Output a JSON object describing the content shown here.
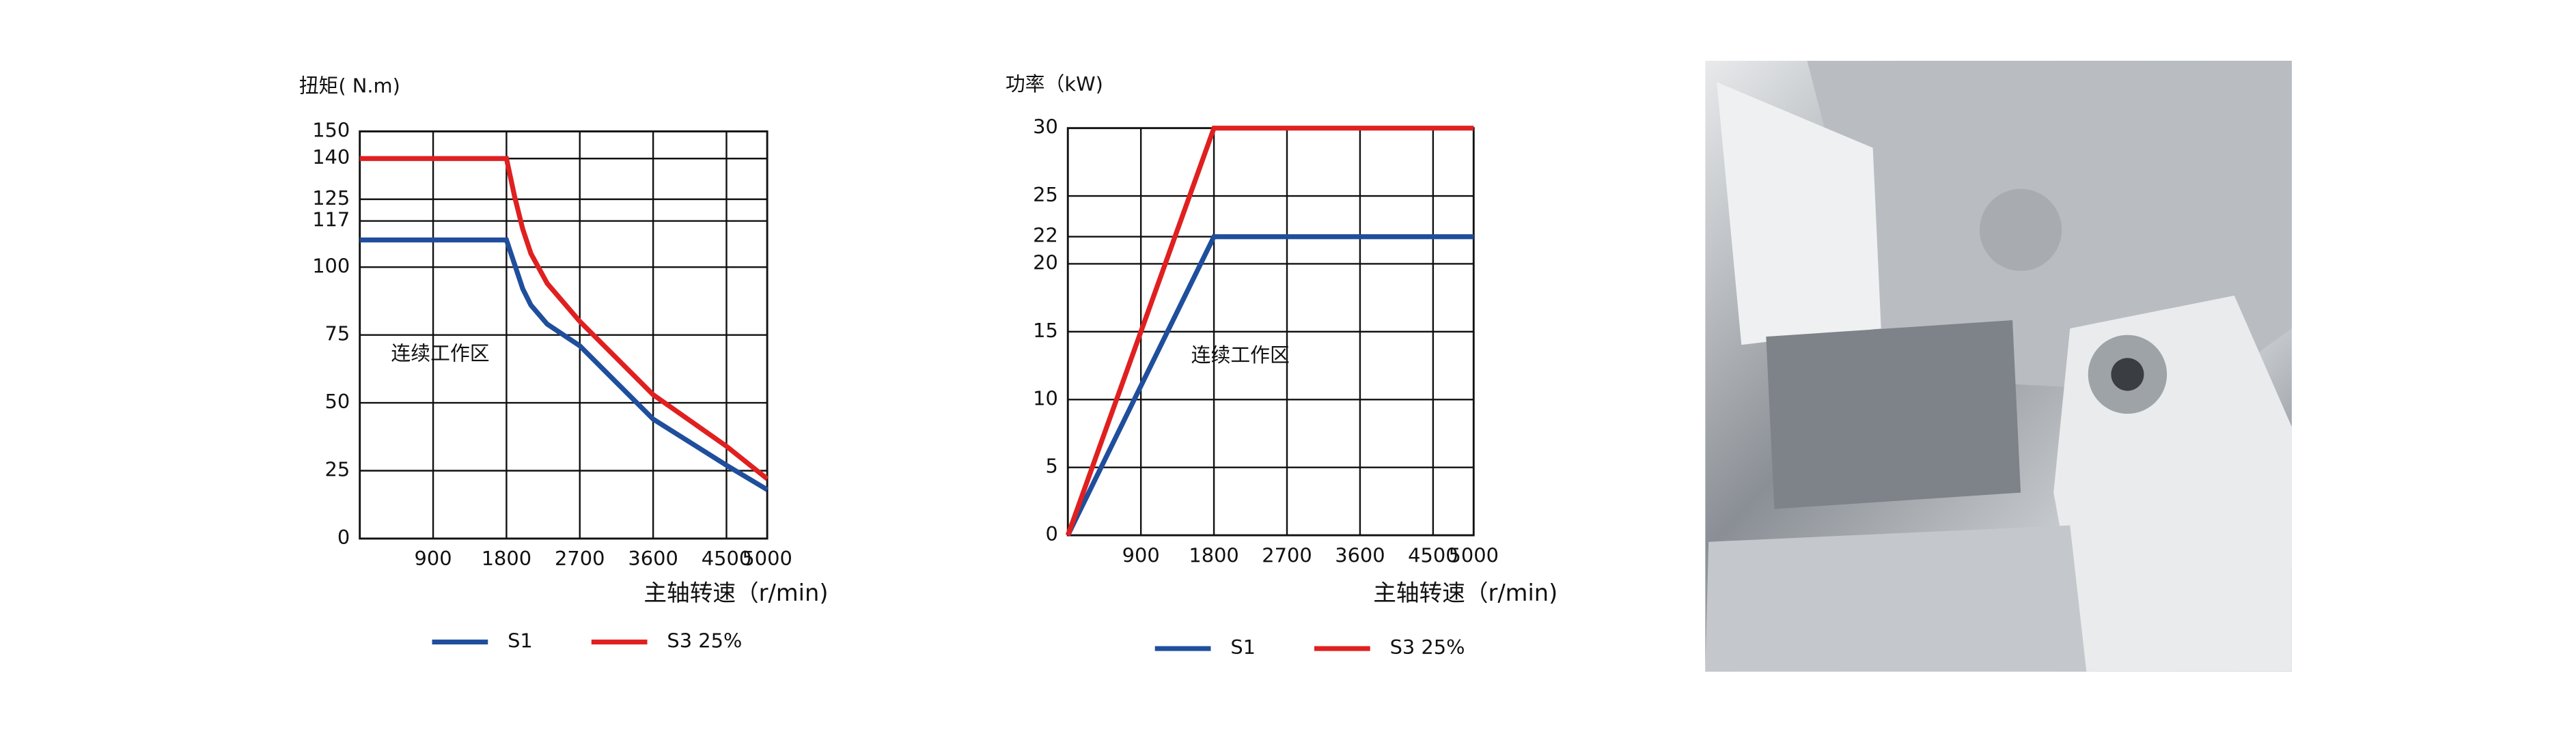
{
  "chart_data": [
    {
      "type": "line",
      "ylabel": "扭矩( N.m)",
      "xlabel": "主轴转速（r/min)",
      "annotation": "连续工作区",
      "x": [
        0,
        1800,
        1900,
        2000,
        2100,
        2300,
        2700,
        3600,
        4500,
        5000
      ],
      "series": [
        {
          "name": "S1",
          "color": "#1f4e9c",
          "values": [
            110,
            110,
            101,
            92,
            86,
            79,
            71,
            44,
            27,
            18
          ]
        },
        {
          "name": "S3 25%",
          "color": "#e02020",
          "values": [
            140,
            140,
            126,
            114,
            105,
            94,
            80,
            53,
            34,
            22
          ]
        }
      ],
      "xlim": [
        0,
        5000
      ],
      "ylim": [
        0,
        150
      ],
      "xticks": [
        900,
        1800,
        2700,
        3600,
        4500,
        5000
      ],
      "yticks": [
        0,
        25,
        50,
        75,
        100,
        117,
        125,
        140,
        150
      ],
      "grid": true
    },
    {
      "type": "line",
      "ylabel": "功率（kW)",
      "xlabel": "主轴转速（r/min)",
      "annotation": "连续工作区",
      "x": [
        0,
        1800,
        5000
      ],
      "series": [
        {
          "name": "S1",
          "color": "#1f4e9c",
          "values": [
            0,
            22,
            22
          ]
        },
        {
          "name": "S3 25%",
          "color": "#e02020",
          "values": [
            0,
            30,
            30
          ]
        }
      ],
      "xlim": [
        0,
        5000
      ],
      "ylim": [
        0,
        30
      ],
      "xticks": [
        900,
        1800,
        2700,
        3600,
        4500,
        5000
      ],
      "yticks": [
        0,
        5,
        10,
        15,
        20,
        22,
        25,
        30
      ],
      "grid": true
    }
  ]
}
